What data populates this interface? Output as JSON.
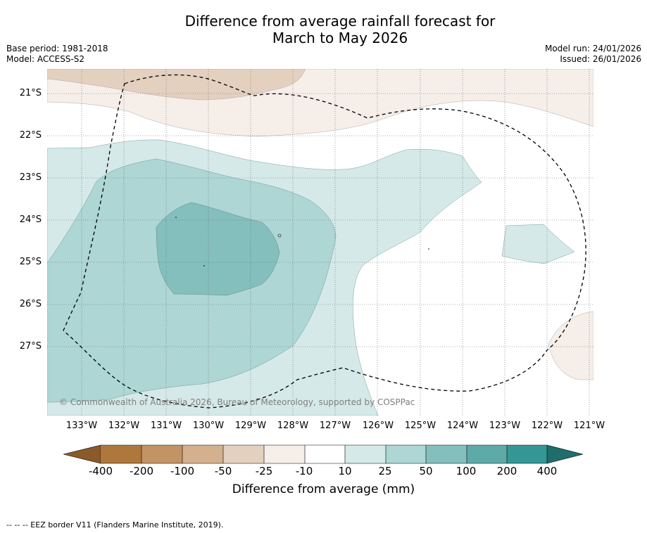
{
  "title": {
    "line1": "Difference from average rainfall forecast for",
    "line2": "March to May 2026"
  },
  "meta_left": {
    "base_period": "Base period: 1981-2018",
    "model": "Model: ACCESS-S2"
  },
  "meta_right": {
    "model_run": "Model run: 24/01/2026",
    "issued": "Issued: 26/01/2026"
  },
  "map": {
    "latitude_labels": [
      "21°S",
      "22°S",
      "23°S",
      "24°S",
      "25°S",
      "26°S",
      "27°S"
    ],
    "longitude_labels": [
      "133°W",
      "132°W",
      "131°W",
      "130°W",
      "129°W",
      "128°W",
      "127°W",
      "126°W",
      "125°W",
      "124°W",
      "123°W",
      "122°W",
      "121°W"
    ],
    "copyright": "© Commonwealth of Australia 2026, Bureau of Meteorology, supported by COSPPac"
  },
  "colorbar": {
    "title": "Difference from average (mm)",
    "tick_labels": [
      "-400",
      "-200",
      "-100",
      "-50",
      "-25",
      "-10",
      "10",
      "25",
      "50",
      "100",
      "200",
      "400"
    ],
    "colors": {
      "below_min": "#8b5a2b",
      "neg_400_200": "#ae783d",
      "neg_200_100": "#c29365",
      "neg_100_50": "#d4b08e",
      "neg_50_25": "#e4d0bf",
      "neg_25_10": "#f5eee9",
      "neutral": "#ffffff",
      "pos_10_25": "#d5e9e8",
      "pos_25_50": "#add6d5",
      "pos_50_100": "#84bfbe",
      "pos_100_200": "#5daaa9",
      "pos_200_400": "#359795",
      "above_max": "#1f6e6c"
    }
  },
  "footnote": "--  --  -- EEZ border V11 (Flanders Marine Institute, 2019)."
}
